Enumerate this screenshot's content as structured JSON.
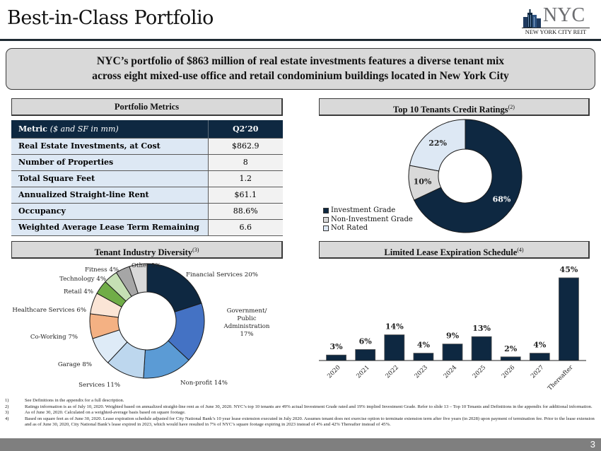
{
  "title": "Best-in-Class Portfolio",
  "logo": {
    "name": "NYC",
    "subtitle": "NEW YORK CITY REIT",
    "icon": "skyline-icon"
  },
  "banner": {
    "line1": "NYC’s portfolio of $863 million of real estate investments features a diverse tenant mix",
    "line2": "across eight mixed-use office and retail condominium buildings located in New York City"
  },
  "sections": {
    "portfolio_metrics": {
      "label": "Portfolio Metrics"
    },
    "credit_ratings": {
      "label": "Top 10 Tenants Credit Ratings",
      "sup": "(2)"
    },
    "industry_diversity": {
      "label": "Tenant Industry Diversity",
      "sup": "(3)"
    },
    "lease_expiration": {
      "label": "Limited Lease Expiration Schedule",
      "sup": "(4)"
    }
  },
  "metrics_table": {
    "header": {
      "metric": "Metric",
      "metric_note": "($ and SF in mm)",
      "value": "Q2’20"
    },
    "rows": [
      {
        "label": "Real Estate Investments, at Cost",
        "value": "$862.9"
      },
      {
        "label": "Number of Properties",
        "value": "8"
      },
      {
        "label": "Total Square Feet",
        "value": "1.2"
      },
      {
        "label": "Annualized Straight-line Rent",
        "value": "$61.1"
      },
      {
        "label": "Occupancy",
        "value": "88.6%"
      },
      {
        "label": "Weighted Average Lease Term Remaining",
        "value": "6.6"
      }
    ]
  },
  "chart_data": [
    {
      "type": "pie",
      "title": "Top 10 Tenants Credit Ratings",
      "donut": true,
      "labels": [
        "Investment Grade",
        "Non-Investment Grade",
        "Not Rated"
      ],
      "values": [
        68,
        10,
        22
      ],
      "data_labels": [
        "68%",
        "10%",
        "22%"
      ],
      "colors": [
        "#0e2841",
        "#d9d9d9",
        "#dde8f4"
      ],
      "legend": "bottom-left"
    },
    {
      "type": "pie",
      "title": "Tenant Industry Diversity",
      "donut": true,
      "labels": [
        "Financial Services",
        "Government/ Public Administration",
        "Non-profit",
        "Services",
        "Garage",
        "Co-Working",
        "Healthcare Services",
        "Retail",
        "Technology",
        "Fitness",
        "Other"
      ],
      "values": [
        20,
        17,
        14,
        11,
        8,
        7,
        6,
        4,
        4,
        4,
        5
      ],
      "data_labels": [
        "Financial Services 20%",
        "Government/ Public Administration 17%",
        "Non-profit 14%",
        "Services 11%",
        "Garage 8%",
        "Co-Working 7%",
        "Healthcare Services 6%",
        "Retail 4%",
        "Technology 4%",
        "Fitness 4%",
        "Other 5%"
      ],
      "colors": [
        "#0e2841",
        "#4472c4",
        "#5b9bd5",
        "#bdd7ee",
        "#deebf7",
        "#f4b183",
        "#fbe5d6",
        "#70ad47",
        "#c5e0b4",
        "#a6a6a6",
        "#d9d9d9"
      ]
    },
    {
      "type": "bar",
      "title": "Limited Lease Expiration Schedule",
      "categories": [
        "2020",
        "2021",
        "2022",
        "2023",
        "2024",
        "2025",
        "2026",
        "2027",
        "Thereafter"
      ],
      "values": [
        3,
        6,
        14,
        4,
        9,
        13,
        2,
        4,
        45
      ],
      "data_labels": [
        "3%",
        "6%",
        "14%",
        "4%",
        "9%",
        "13%",
        "2%",
        "4%",
        "45%"
      ],
      "xlabel": "",
      "ylabel": "",
      "ylim": [
        0,
        45
      ],
      "color": "#0e2841",
      "grid": false
    }
  ],
  "footnotes": [
    {
      "num": "1)",
      "text": "See Definitions in the appendix for a full description."
    },
    {
      "num": "2)",
      "text": "Ratings information is as of July 10, 2020. Weighted based on annualized straight-line rent as of June 30, 2020. NYC’s top 10 tenants are 49% actual Investment Grade rated and 19%  implied Investment Grade. Refer to slide 13 – Top 10 Tenants and Definitions in the appendix for additional information."
    },
    {
      "num": "3)",
      "text": "As of June 30, 2020. Calculated on a weighted-average basis based on square footage."
    },
    {
      "num": "4)",
      "text": "Based on square feet as of June 30, 2020. Lease expiration schedule adjusted for City National Bank’s 10 year lease extension executed in July 2020. Assumes tenant does not exercise option to terminate extension term after five years (in 2028) upon payment of termination fee. Prior to the lease extension and as of June 30, 2020, City National Bank’s lease expired in 2023, which would have resulted in 7% of NYC’s square footage expiring in 2023 instead of 4% and 42% Thereafter instead of 45%."
    }
  ],
  "page_number": "3"
}
